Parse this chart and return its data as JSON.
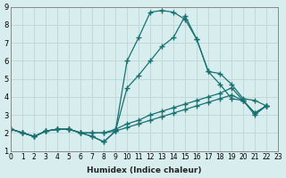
{
  "xlabel": "Humidex (Indice chaleur)",
  "ylabel": "",
  "xlim": [
    0,
    23
  ],
  "ylim": [
    1,
    9
  ],
  "background_color": "#d8eeee",
  "grid_color": "#c0d8d8",
  "line_color": "#1a7070",
  "series": [
    [
      2.2,
      2.0,
      1.8,
      2.1,
      2.2,
      2.2,
      2.0,
      1.8,
      1.5,
      2.1,
      6.0,
      7.3,
      8.7,
      8.8,
      8.7,
      8.3,
      7.2,
      5.4,
      4.7,
      3.9,
      3.8,
      3.0,
      3.5
    ],
    [
      2.2,
      2.0,
      1.8,
      2.1,
      2.2,
      2.2,
      2.0,
      1.8,
      1.5,
      2.1,
      4.5,
      5.2,
      6.0,
      6.8,
      7.3,
      8.5,
      7.2,
      5.4,
      5.3,
      4.7,
      3.9,
      3.8,
      3.5
    ],
    [
      2.2,
      2.0,
      1.8,
      2.1,
      2.2,
      2.2,
      2.0,
      2.0,
      2.0,
      2.2,
      2.5,
      2.7,
      3.0,
      3.2,
      3.4,
      3.6,
      3.8,
      4.0,
      4.2,
      4.5,
      3.8,
      3.1,
      3.5
    ],
    [
      2.2,
      2.0,
      1.8,
      2.1,
      2.2,
      2.2,
      2.0,
      2.0,
      2.0,
      2.1,
      2.3,
      2.5,
      2.7,
      2.9,
      3.1,
      3.3,
      3.5,
      3.7,
      3.9,
      4.1,
      3.8,
      3.1,
      3.5
    ]
  ],
  "x_values": [
    0,
    1,
    2,
    3,
    4,
    5,
    6,
    7,
    8,
    9,
    10,
    11,
    12,
    13,
    14,
    15,
    16,
    17,
    18,
    19,
    20,
    21,
    22
  ]
}
